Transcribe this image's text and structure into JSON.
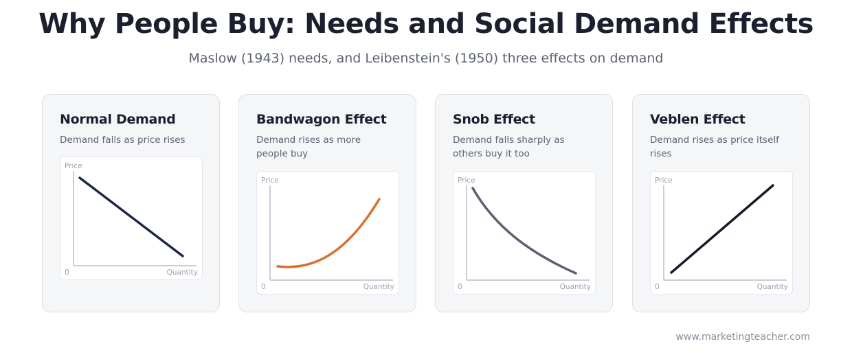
{
  "header": {
    "title": "Why People Buy: Needs and Social Demand Effects",
    "subtitle": "Maslow (1943) needs, and Leibenstein's (1950) three effects on demand"
  },
  "cards": [
    {
      "title": "Normal Demand",
      "description": "Demand falls as price rises",
      "curve_shape": "straight line sloping down",
      "curve_color": "#1e2746",
      "axes": {
        "y_label": "Price",
        "origin_label": "0",
        "x_label": "Quantity"
      }
    },
    {
      "title": "Bandwagon Effect",
      "description": "Demand rises as more people buy",
      "curve_shape": "upward curve, rising faster",
      "curve_color": "#d9702f",
      "axes": {
        "y_label": "Price",
        "origin_label": "0",
        "x_label": "Quantity"
      }
    },
    {
      "title": "Snob Effect",
      "description": "Demand falls sharply as others buy it too",
      "curve_shape": "downward curve, falling steeply then flattening",
      "curve_color": "#5a6272",
      "axes": {
        "y_label": "Price",
        "origin_label": "0",
        "x_label": "Quantity"
      }
    },
    {
      "title": "Veblen Effect",
      "description": "Demand rises as price itself rises",
      "curve_shape": "straight line sloping up",
      "curve_color": "#161a2a",
      "axes": {
        "y_label": "Price",
        "origin_label": "0",
        "x_label": "Quantity"
      }
    }
  ],
  "footer": {
    "source": "www.marketingteacher.com"
  }
}
